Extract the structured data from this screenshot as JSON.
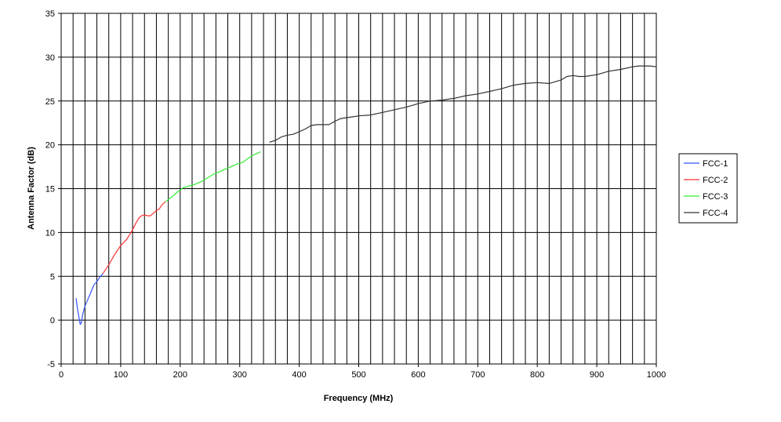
{
  "chart_data": {
    "type": "line",
    "title": "",
    "xlabel": "Frequency (MHz)",
    "ylabel": "Antenna Factor (dB)",
    "xlim": [
      0,
      1000
    ],
    "ylim": [
      -5,
      35
    ],
    "x_ticks": [
      0,
      100,
      200,
      300,
      400,
      500,
      600,
      700,
      800,
      900,
      1000
    ],
    "y_ticks": [
      -5,
      0,
      5,
      10,
      15,
      20,
      25,
      30,
      35
    ],
    "x_minor_step": 20,
    "grid": true,
    "legend_position": "right",
    "series": [
      {
        "name": "FCC-1",
        "color": "#3355ff",
        "points": [
          [
            25,
            2.5
          ],
          [
            28,
            1.0
          ],
          [
            30,
            0.3
          ],
          [
            32,
            -0.5
          ],
          [
            34,
            -0.3
          ],
          [
            36,
            0.6
          ],
          [
            40,
            1.6
          ],
          [
            45,
            2.4
          ],
          [
            50,
            3.2
          ],
          [
            55,
            4.0
          ],
          [
            60,
            4.4
          ],
          [
            65,
            4.9
          ],
          [
            70,
            5.3
          ]
        ]
      },
      {
        "name": "FCC-2",
        "color": "#ff3333",
        "points": [
          [
            70,
            5.3
          ],
          [
            80,
            6.3
          ],
          [
            90,
            7.5
          ],
          [
            100,
            8.5
          ],
          [
            110,
            9.2
          ],
          [
            120,
            10.3
          ],
          [
            125,
            11.0
          ],
          [
            130,
            11.6
          ],
          [
            135,
            11.9
          ],
          [
            140,
            12.0
          ],
          [
            145,
            11.9
          ],
          [
            150,
            11.9
          ],
          [
            155,
            12.2
          ],
          [
            160,
            12.5
          ],
          [
            165,
            12.7
          ],
          [
            170,
            13.2
          ],
          [
            175,
            13.5
          ]
        ]
      },
      {
        "name": "FCC-3",
        "color": "#33ee33",
        "points": [
          [
            175,
            13.5
          ],
          [
            185,
            14.0
          ],
          [
            195,
            14.6
          ],
          [
            205,
            15.1
          ],
          [
            215,
            15.3
          ],
          [
            225,
            15.5
          ],
          [
            235,
            15.8
          ],
          [
            245,
            16.2
          ],
          [
            255,
            16.6
          ],
          [
            265,
            16.9
          ],
          [
            275,
            17.2
          ],
          [
            285,
            17.5
          ],
          [
            295,
            17.8
          ],
          [
            305,
            18.0
          ],
          [
            315,
            18.5
          ],
          [
            325,
            18.9
          ],
          [
            335,
            19.2
          ]
        ]
      },
      {
        "name": "FCC-4",
        "color": "#333333",
        "points": [
          [
            350,
            20.3
          ],
          [
            360,
            20.5
          ],
          [
            370,
            20.9
          ],
          [
            380,
            21.1
          ],
          [
            390,
            21.2
          ],
          [
            400,
            21.5
          ],
          [
            410,
            21.8
          ],
          [
            420,
            22.2
          ],
          [
            430,
            22.3
          ],
          [
            440,
            22.3
          ],
          [
            450,
            22.3
          ],
          [
            460,
            22.7
          ],
          [
            470,
            23.0
          ],
          [
            480,
            23.1
          ],
          [
            490,
            23.2
          ],
          [
            500,
            23.3
          ],
          [
            520,
            23.4
          ],
          [
            540,
            23.7
          ],
          [
            560,
            24.0
          ],
          [
            580,
            24.3
          ],
          [
            600,
            24.7
          ],
          [
            620,
            25.0
          ],
          [
            640,
            25.1
          ],
          [
            660,
            25.3
          ],
          [
            680,
            25.6
          ],
          [
            700,
            25.8
          ],
          [
            720,
            26.1
          ],
          [
            740,
            26.4
          ],
          [
            760,
            26.8
          ],
          [
            780,
            27.0
          ],
          [
            800,
            27.1
          ],
          [
            820,
            27.0
          ],
          [
            840,
            27.4
          ],
          [
            850,
            27.8
          ],
          [
            860,
            27.9
          ],
          [
            870,
            27.8
          ],
          [
            880,
            27.8
          ],
          [
            900,
            28.0
          ],
          [
            920,
            28.4
          ],
          [
            940,
            28.6
          ],
          [
            960,
            28.9
          ],
          [
            970,
            29.0
          ],
          [
            980,
            29.0
          ],
          [
            990,
            29.0
          ],
          [
            1000,
            28.9
          ]
        ]
      }
    ]
  }
}
